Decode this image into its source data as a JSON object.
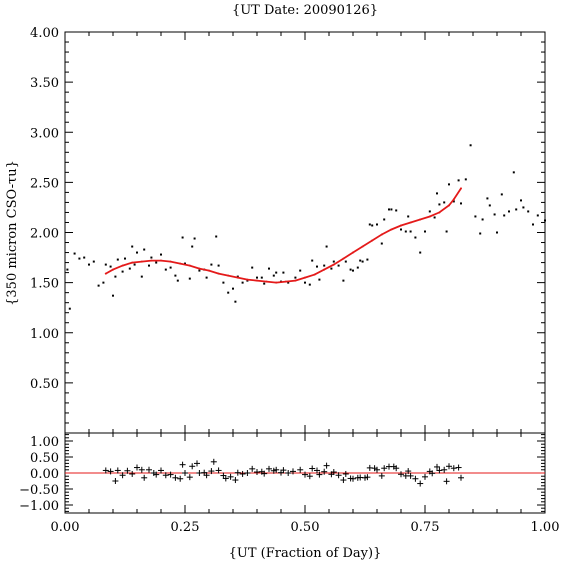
{
  "chart_data": [
    {
      "type": "scatter",
      "title": "{UT Date: 20090126}",
      "xlabel": "",
      "ylabel": "{350 micron CSO-τu}",
      "xlim": [
        0,
        1
      ],
      "ylim": [
        0,
        4
      ],
      "yticks": [
        {
          "v": 0.5,
          "label": "0.50"
        },
        {
          "v": 1.0,
          "label": "1.00"
        },
        {
          "v": 1.5,
          "label": "1.50"
        },
        {
          "v": 2.0,
          "label": "2.00"
        },
        {
          "v": 2.5,
          "label": "2.50"
        },
        {
          "v": 3.0,
          "label": "3.00"
        },
        {
          "v": 3.5,
          "label": "3.50"
        },
        {
          "v": 4.0,
          "label": "4.00"
        }
      ],
      "series": [
        {
          "role": "points",
          "color": "#000000",
          "points": [
            [
              0.005,
              1.63
            ],
            [
              0.01,
              1.24
            ],
            [
              0.02,
              1.79
            ],
            [
              0.03,
              1.74
            ],
            [
              0.04,
              1.75
            ],
            [
              0.05,
              1.68
            ],
            [
              0.06,
              1.71
            ],
            [
              0.07,
              1.47
            ],
            [
              0.08,
              1.5
            ],
            [
              0.085,
              1.68
            ],
            [
              0.095,
              1.66
            ],
            [
              0.1,
              1.37
            ],
            [
              0.105,
              1.56
            ],
            [
              0.11,
              1.73
            ],
            [
              0.12,
              1.61
            ],
            [
              0.125,
              1.74
            ],
            [
              0.135,
              1.64
            ],
            [
              0.14,
              1.86
            ],
            [
              0.145,
              1.68
            ],
            [
              0.15,
              1.8
            ],
            [
              0.16,
              1.56
            ],
            [
              0.165,
              1.83
            ],
            [
              0.175,
              1.67
            ],
            [
              0.18,
              1.75
            ],
            [
              0.19,
              1.7
            ],
            [
              0.2,
              1.78
            ],
            [
              0.21,
              1.63
            ],
            [
              0.22,
              1.65
            ],
            [
              0.23,
              1.57
            ],
            [
              0.235,
              1.52
            ],
            [
              0.245,
              1.95
            ],
            [
              0.25,
              1.69
            ],
            [
              0.26,
              1.54
            ],
            [
              0.265,
              1.86
            ],
            [
              0.27,
              1.94
            ],
            [
              0.28,
              1.62
            ],
            [
              0.29,
              1.63
            ],
            [
              0.295,
              1.55
            ],
            [
              0.305,
              1.68
            ],
            [
              0.315,
              1.96
            ],
            [
              0.32,
              1.67
            ],
            [
              0.33,
              1.5
            ],
            [
              0.34,
              1.4
            ],
            [
              0.35,
              1.44
            ],
            [
              0.355,
              1.31
            ],
            [
              0.36,
              1.56
            ],
            [
              0.37,
              1.5
            ],
            [
              0.38,
              1.52
            ],
            [
              0.39,
              1.65
            ],
            [
              0.4,
              1.55
            ],
            [
              0.41,
              1.55
            ],
            [
              0.415,
              1.49
            ],
            [
              0.425,
              1.64
            ],
            [
              0.435,
              1.57
            ],
            [
              0.44,
              1.6
            ],
            [
              0.45,
              1.51
            ],
            [
              0.455,
              1.6
            ],
            [
              0.465,
              1.5
            ],
            [
              0.48,
              1.55
            ],
            [
              0.49,
              1.62
            ],
            [
              0.5,
              1.5
            ],
            [
              0.51,
              1.48
            ],
            [
              0.515,
              1.72
            ],
            [
              0.525,
              1.66
            ],
            [
              0.53,
              1.53
            ],
            [
              0.54,
              1.67
            ],
            [
              0.545,
              1.86
            ],
            [
              0.555,
              1.64
            ],
            [
              0.56,
              1.71
            ],
            [
              0.57,
              1.67
            ],
            [
              0.58,
              1.52
            ],
            [
              0.585,
              1.71
            ],
            [
              0.595,
              1.63
            ],
            [
              0.6,
              1.62
            ],
            [
              0.61,
              1.65
            ],
            [
              0.615,
              1.72
            ],
            [
              0.62,
              1.71
            ],
            [
              0.63,
              1.73
            ],
            [
              0.635,
              2.08
            ],
            [
              0.64,
              2.07
            ],
            [
              0.65,
              2.08
            ],
            [
              0.66,
              1.89
            ],
            [
              0.665,
              2.13
            ],
            [
              0.675,
              2.23
            ],
            [
              0.68,
              2.23
            ],
            [
              0.69,
              2.22
            ],
            [
              0.7,
              2.03
            ],
            [
              0.71,
              2.01
            ],
            [
              0.715,
              2.16
            ],
            [
              0.72,
              2.01
            ],
            [
              0.73,
              1.95
            ],
            [
              0.74,
              1.8
            ],
            [
              0.75,
              2.01
            ],
            [
              0.76,
              2.21
            ],
            [
              0.77,
              2.15
            ],
            [
              0.775,
              2.39
            ],
            [
              0.78,
              2.28
            ],
            [
              0.79,
              2.3
            ],
            [
              0.795,
              2.01
            ],
            [
              0.8,
              2.48
            ],
            [
              0.81,
              2.31
            ],
            [
              0.82,
              2.52
            ],
            [
              0.825,
              2.29
            ],
            [
              0.835,
              2.53
            ],
            [
              0.845,
              2.87
            ],
            [
              0.855,
              2.16
            ],
            [
              0.865,
              1.99
            ],
            [
              0.87,
              2.13
            ],
            [
              0.88,
              2.34
            ],
            [
              0.885,
              2.27
            ],
            [
              0.895,
              2.18
            ],
            [
              0.9,
              2.0
            ],
            [
              0.91,
              2.38
            ],
            [
              0.915,
              2.17
            ],
            [
              0.925,
              2.21
            ],
            [
              0.935,
              2.6
            ],
            [
              0.94,
              2.23
            ],
            [
              0.95,
              2.32
            ],
            [
              0.955,
              2.25
            ],
            [
              0.965,
              2.21
            ],
            [
              0.975,
              2.08
            ],
            [
              0.985,
              2.17
            ],
            [
              1.0,
              2.12
            ]
          ]
        },
        {
          "role": "fit",
          "color": "#e41a1a",
          "points": [
            [
              0.085,
              1.59
            ],
            [
              0.1,
              1.63
            ],
            [
              0.12,
              1.67
            ],
            [
              0.14,
              1.7
            ],
            [
              0.16,
              1.71
            ],
            [
              0.18,
              1.72
            ],
            [
              0.2,
              1.72
            ],
            [
              0.22,
              1.71
            ],
            [
              0.24,
              1.69
            ],
            [
              0.26,
              1.67
            ],
            [
              0.28,
              1.64
            ],
            [
              0.3,
              1.62
            ],
            [
              0.32,
              1.59
            ],
            [
              0.34,
              1.57
            ],
            [
              0.36,
              1.55
            ],
            [
              0.38,
              1.53
            ],
            [
              0.4,
              1.52
            ],
            [
              0.42,
              1.51
            ],
            [
              0.44,
              1.5
            ],
            [
              0.46,
              1.51
            ],
            [
              0.48,
              1.52
            ],
            [
              0.5,
              1.55
            ],
            [
              0.52,
              1.58
            ],
            [
              0.54,
              1.63
            ],
            [
              0.56,
              1.68
            ],
            [
              0.58,
              1.74
            ],
            [
              0.6,
              1.8
            ],
            [
              0.62,
              1.86
            ],
            [
              0.64,
              1.92
            ],
            [
              0.66,
              1.98
            ],
            [
              0.68,
              2.03
            ],
            [
              0.7,
              2.07
            ],
            [
              0.72,
              2.1
            ],
            [
              0.74,
              2.13
            ],
            [
              0.76,
              2.16
            ],
            [
              0.78,
              2.2
            ],
            [
              0.8,
              2.27
            ],
            [
              0.81,
              2.33
            ],
            [
              0.825,
              2.44
            ]
          ]
        }
      ]
    },
    {
      "type": "scatter",
      "title": "",
      "xlabel": "{UT (Fraction of Day)}",
      "ylabel": "",
      "xlim": [
        0,
        1
      ],
      "ylim": [
        -1.25,
        1.25
      ],
      "xticks": [
        {
          "v": 0.0,
          "label": "0.00"
        },
        {
          "v": 0.25,
          "label": "0.25"
        },
        {
          "v": 0.5,
          "label": "0.50"
        },
        {
          "v": 0.75,
          "label": "0.75"
        },
        {
          "v": 1.0,
          "label": "1.00"
        }
      ],
      "yticks": [
        {
          "v": -1.0,
          "label": "−1.00"
        },
        {
          "v": -0.5,
          "label": "−0.50"
        },
        {
          "v": 0.0,
          "label": "0.00"
        },
        {
          "v": 0.5,
          "label": "0.50"
        },
        {
          "v": 1.0,
          "label": "1.00"
        }
      ],
      "zero_line_color": "#e41a1a",
      "series": [
        {
          "role": "residuals",
          "color": "#000000",
          "points": [
            [
              0.085,
              0.08
            ],
            [
              0.095,
              0.05
            ],
            [
              0.105,
              -0.25
            ],
            [
              0.11,
              0.08
            ],
            [
              0.12,
              -0.07
            ],
            [
              0.13,
              0.07
            ],
            [
              0.14,
              -0.03
            ],
            [
              0.15,
              0.17
            ],
            [
              0.16,
              0.1
            ],
            [
              0.165,
              -0.15
            ],
            [
              0.175,
              0.1
            ],
            [
              0.185,
              0.0
            ],
            [
              0.19,
              -0.05
            ],
            [
              0.2,
              0.08
            ],
            [
              0.21,
              -0.07
            ],
            [
              0.22,
              -0.05
            ],
            [
              0.23,
              -0.15
            ],
            [
              0.24,
              -0.18
            ],
            [
              0.245,
              0.26
            ],
            [
              0.25,
              0.0
            ],
            [
              0.26,
              -0.13
            ],
            [
              0.265,
              0.21
            ],
            [
              0.275,
              0.3
            ],
            [
              0.28,
              0.0
            ],
            [
              0.29,
              0.01
            ],
            [
              0.295,
              -0.07
            ],
            [
              0.305,
              0.06
            ],
            [
              0.31,
              0.35
            ],
            [
              0.32,
              0.08
            ],
            [
              0.33,
              -0.08
            ],
            [
              0.335,
              -0.17
            ],
            [
              0.345,
              -0.12
            ],
            [
              0.355,
              -0.22
            ],
            [
              0.36,
              0.01
            ],
            [
              0.37,
              -0.03
            ],
            [
              0.38,
              0.0
            ],
            [
              0.39,
              0.13
            ],
            [
              0.4,
              0.03
            ],
            [
              0.41,
              0.04
            ],
            [
              0.415,
              -0.02
            ],
            [
              0.425,
              0.13
            ],
            [
              0.435,
              0.07
            ],
            [
              0.44,
              0.1
            ],
            [
              0.45,
              0.01
            ],
            [
              0.455,
              0.09
            ],
            [
              0.465,
              0.0
            ],
            [
              0.475,
              0.05
            ],
            [
              0.49,
              0.1
            ],
            [
              0.5,
              -0.05
            ],
            [
              0.51,
              -0.1
            ],
            [
              0.515,
              0.14
            ],
            [
              0.525,
              0.08
            ],
            [
              0.53,
              -0.05
            ],
            [
              0.54,
              0.04
            ],
            [
              0.545,
              0.23
            ],
            [
              0.555,
              -0.04
            ],
            [
              0.56,
              0.03
            ],
            [
              0.57,
              -0.07
            ],
            [
              0.58,
              -0.22
            ],
            [
              0.585,
              -0.03
            ],
            [
              0.595,
              -0.17
            ],
            [
              0.6,
              -0.18
            ],
            [
              0.61,
              -0.15
            ],
            [
              0.615,
              -0.14
            ],
            [
              0.625,
              -0.15
            ],
            [
              0.63,
              -0.13
            ],
            [
              0.635,
              0.16
            ],
            [
              0.645,
              0.15
            ],
            [
              0.65,
              0.1
            ],
            [
              0.66,
              -0.09
            ],
            [
              0.665,
              0.15
            ],
            [
              0.675,
              0.2
            ],
            [
              0.685,
              0.2
            ],
            [
              0.69,
              0.15
            ],
            [
              0.7,
              -0.04
            ],
            [
              0.71,
              -0.09
            ],
            [
              0.715,
              0.06
            ],
            [
              0.72,
              -0.09
            ],
            [
              0.73,
              -0.18
            ],
            [
              0.74,
              -0.33
            ],
            [
              0.75,
              -0.12
            ],
            [
              0.76,
              0.05
            ],
            [
              0.765,
              -0.01
            ],
            [
              0.775,
              0.19
            ],
            [
              0.78,
              0.08
            ],
            [
              0.79,
              0.1
            ],
            [
              0.795,
              -0.26
            ],
            [
              0.8,
              0.21
            ],
            [
              0.81,
              0.15
            ],
            [
              0.82,
              0.17
            ],
            [
              0.825,
              -0.15
            ]
          ]
        }
      ]
    }
  ]
}
